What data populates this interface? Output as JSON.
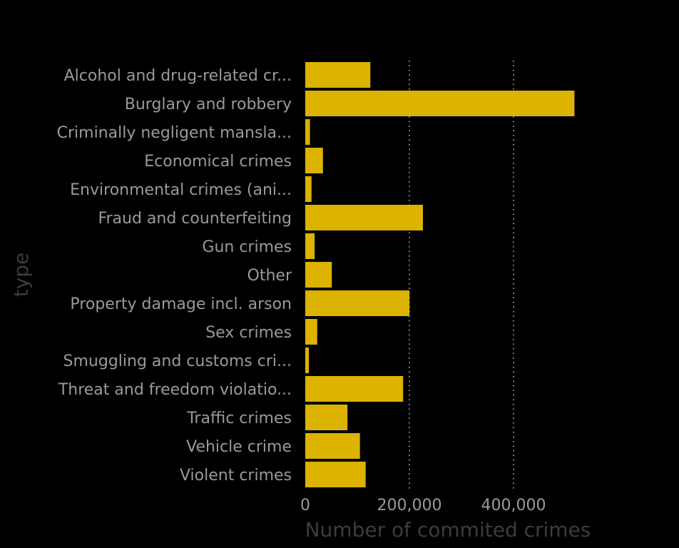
{
  "chart_data": {
    "type": "bar",
    "orientation": "horizontal",
    "ylabel": "type",
    "xlabel": "Number of commited crimes",
    "xlim": [
      0,
      520000
    ],
    "xticks": [
      0,
      200000,
      400000
    ],
    "xtick_labels": [
      "0",
      "200,000",
      "400,000"
    ],
    "grid": "vertical dotted",
    "bar_color": "#dbb300",
    "background": "#000000",
    "categories": [
      "Alcohol and drug-related cr...",
      "Burglary and robbery",
      "Criminally negligent mansla...",
      "Economical crimes",
      "Environmental crimes (ani...",
      "Fraud and counterfeiting",
      "Gun crimes",
      "Other",
      "Property damage incl. arson",
      "Sex crimes",
      "Smuggling and customs cri...",
      "Threat and freedom violatio...",
      "Traffic crimes",
      "Vehicle crime",
      "Violent crimes"
    ],
    "values": [
      125000,
      517000,
      9000,
      34000,
      12000,
      226000,
      18000,
      51000,
      200000,
      23000,
      7000,
      188000,
      81000,
      105000,
      116000
    ]
  }
}
